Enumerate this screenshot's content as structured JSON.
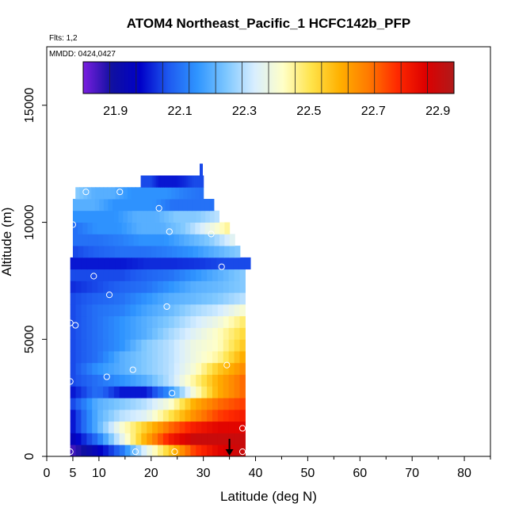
{
  "chart_data": {
    "type": "heatmap",
    "title": "ATOM4 Northeast_Pacific_1 HCFC142b_PFP",
    "flights_label": "Flts: 1,2",
    "dates_label": "MMDD: 0424,0427",
    "xlabel": "Latitude (deg N)",
    "ylabel": "Altitude (m)",
    "xlim": [
      0,
      85
    ],
    "ylim": [
      0,
      17500
    ],
    "x_ticks": [
      0,
      5,
      10,
      20,
      30,
      40,
      50,
      60,
      70,
      80
    ],
    "y_ticks": [
      0,
      5000,
      10000,
      15000
    ],
    "colorbar": {
      "min": 21.8,
      "max": 22.95,
      "tick_values": [
        21.9,
        22.1,
        22.3,
        22.5,
        22.7,
        22.9
      ],
      "tick_labels": [
        "21.9",
        "22.1",
        "22.3",
        "22.5",
        "22.7",
        "22.9"
      ],
      "colors": [
        "#7A1FE0",
        "#1010A0",
        "#0000C8",
        "#1E5AF0",
        "#2F95FF",
        "#7CC6FF",
        "#D8EEFF",
        "#FFFFC8",
        "#FFE34A",
        "#FFB000",
        "#FF7A00",
        "#FF2A00",
        "#DD0000",
        "#B01A1A"
      ]
    },
    "grid": false,
    "field_rows": [
      {
        "alt": [
          0,
          500
        ],
        "lat_range": [
          4.5,
          38
        ],
        "values": [
          21.85,
          21.95,
          22.1,
          22.35,
          22.55,
          22.75,
          22.85,
          22.9
        ]
      },
      {
        "alt": [
          500,
          1000
        ],
        "lat_range": [
          4.5,
          38
        ],
        "values": [
          21.95,
          22.1,
          22.35,
          22.6,
          22.8,
          22.9,
          22.9,
          22.9
        ]
      },
      {
        "alt": [
          1000,
          1500
        ],
        "lat_range": [
          4.5,
          38
        ],
        "values": [
          22.0,
          22.2,
          22.4,
          22.55,
          22.7,
          22.8,
          22.85,
          22.85
        ]
      },
      {
        "alt": [
          1500,
          2000
        ],
        "lat_range": [
          4.5,
          38
        ],
        "values": [
          22.0,
          22.2,
          22.3,
          22.35,
          22.5,
          22.65,
          22.75,
          22.8
        ]
      },
      {
        "alt": [
          2000,
          2500
        ],
        "lat_range": [
          4.5,
          38
        ],
        "values": [
          22.05,
          22.2,
          22.25,
          22.3,
          22.4,
          22.6,
          22.7,
          22.75
        ]
      },
      {
        "alt": [
          2500,
          3000
        ],
        "lat_range": [
          4.5,
          38
        ],
        "values": [
          22.0,
          22.1,
          22.0,
          22.0,
          22.15,
          22.4,
          22.6,
          22.7
        ]
      },
      {
        "alt": [
          3000,
          3500
        ],
        "lat_range": [
          4.5,
          38
        ],
        "values": [
          22.05,
          22.1,
          22.15,
          22.2,
          22.3,
          22.45,
          22.6,
          22.7
        ]
      },
      {
        "alt": [
          3500,
          4000
        ],
        "lat_range": [
          4.5,
          38
        ],
        "values": [
          22.05,
          22.15,
          22.2,
          22.25,
          22.3,
          22.4,
          22.55,
          22.65
        ]
      },
      {
        "alt": [
          4000,
          4500
        ],
        "lat_range": [
          4.5,
          38
        ],
        "values": [
          22.05,
          22.1,
          22.2,
          22.25,
          22.3,
          22.38,
          22.45,
          22.6
        ]
      },
      {
        "alt": [
          4500,
          5000
        ],
        "lat_range": [
          4.5,
          38
        ],
        "values": [
          22.05,
          22.1,
          22.15,
          22.25,
          22.3,
          22.38,
          22.42,
          22.55
        ]
      },
      {
        "alt": [
          5000,
          5500
        ],
        "lat_range": [
          4.5,
          38
        ],
        "values": [
          22.05,
          22.1,
          22.15,
          22.2,
          22.28,
          22.35,
          22.42,
          22.52
        ]
      },
      {
        "alt": [
          5500,
          6000
        ],
        "lat_range": [
          4.5,
          38
        ],
        "values": [
          22.05,
          22.1,
          22.15,
          22.2,
          22.25,
          22.32,
          22.38,
          22.48
        ]
      },
      {
        "alt": [
          6000,
          6500
        ],
        "lat_range": [
          4.5,
          38
        ],
        "values": [
          22.05,
          22.1,
          22.12,
          22.18,
          22.22,
          22.28,
          22.32,
          22.4
        ]
      },
      {
        "alt": [
          6500,
          7000
        ],
        "lat_range": [
          4.5,
          38
        ],
        "values": [
          22.05,
          22.08,
          22.1,
          22.15,
          22.2,
          22.22,
          22.25,
          22.3
        ]
      },
      {
        "alt": [
          7000,
          7500
        ],
        "lat_range": [
          4.5,
          38
        ],
        "values": [
          22.02,
          22.05,
          22.08,
          22.1,
          22.15,
          22.2,
          22.22,
          22.25
        ]
      },
      {
        "alt": [
          7500,
          8000
        ],
        "lat_range": [
          4.5,
          38
        ],
        "values": [
          22.05,
          22.05,
          22.05,
          22.08,
          22.1,
          22.15,
          22.2,
          22.25
        ]
      },
      {
        "alt": [
          8000,
          8500
        ],
        "lat_range": [
          4.5,
          39
        ],
        "values": [
          22.0,
          22.0,
          22.0,
          22.02,
          22.02,
          22.03,
          22.05,
          22.05
        ]
      },
      {
        "alt": [
          8500,
          9000
        ],
        "lat_range": [
          5,
          37
        ],
        "values": [
          22.05,
          22.08,
          22.1,
          22.1,
          22.12,
          22.15,
          22.2,
          22.25
        ]
      },
      {
        "alt": [
          9000,
          9500
        ],
        "lat_range": [
          5,
          36
        ],
        "values": [
          22.1,
          22.1,
          22.12,
          22.15,
          22.15,
          22.2,
          22.25,
          22.35
        ]
      },
      {
        "alt": [
          9500,
          10000
        ],
        "lat_range": [
          5,
          35
        ],
        "values": [
          22.1,
          22.15,
          22.15,
          22.2,
          22.2,
          22.25,
          22.35,
          22.45
        ]
      },
      {
        "alt": [
          10000,
          10500
        ],
        "lat_range": [
          5,
          33
        ],
        "values": [
          22.15,
          22.15,
          22.15,
          22.2,
          22.2,
          22.25,
          22.25,
          22.3
        ]
      },
      {
        "alt": [
          10500,
          11000
        ],
        "lat_range": [
          5,
          32
        ],
        "values": [
          22.2,
          22.2,
          22.15,
          22.15,
          22.15,
          22.1,
          22.1,
          22.1
        ]
      },
      {
        "alt": [
          11000,
          11500
        ],
        "lat_range": [
          5.5,
          30
        ],
        "values": [
          22.25,
          22.2,
          22.2,
          22.15,
          22.15,
          22.15,
          22.12,
          22.1
        ]
      },
      {
        "alt": [
          11500,
          12000
        ],
        "lat_range": [
          18,
          30
        ],
        "values": [
          22.05,
          22.05,
          22.0,
          22.0,
          22.0,
          22.02,
          22.05,
          22.05
        ]
      },
      {
        "alt": [
          12000,
          12500
        ],
        "lat_range": [
          29.3,
          29.8
        ],
        "values": [
          22.05,
          22.05,
          22.05,
          22.05,
          22.05,
          22.05,
          22.05,
          22.05
        ]
      }
    ],
    "sample_points": [
      {
        "lat": 4.5,
        "alt": 200
      },
      {
        "lat": 17.0,
        "alt": 200
      },
      {
        "lat": 24.5,
        "alt": 200
      },
      {
        "lat": 37.5,
        "alt": 200
      },
      {
        "lat": 37.5,
        "alt": 1200
      },
      {
        "lat": 24.0,
        "alt": 2700
      },
      {
        "lat": 4.5,
        "alt": 3200
      },
      {
        "lat": 11.5,
        "alt": 3400
      },
      {
        "lat": 16.5,
        "alt": 3700
      },
      {
        "lat": 34.5,
        "alt": 3900
      },
      {
        "lat": 5.5,
        "alt": 5600
      },
      {
        "lat": 4.5,
        "alt": 5700
      },
      {
        "lat": 23.0,
        "alt": 6400
      },
      {
        "lat": 12.0,
        "alt": 6900
      },
      {
        "lat": 9.0,
        "alt": 7700
      },
      {
        "lat": 33.5,
        "alt": 8100
      },
      {
        "lat": 5.0,
        "alt": 9900
      },
      {
        "lat": 23.5,
        "alt": 9600
      },
      {
        "lat": 31.5,
        "alt": 9500
      },
      {
        "lat": 21.5,
        "alt": 10600
      },
      {
        "lat": 7.5,
        "alt": 11300
      },
      {
        "lat": 14.0,
        "alt": 11300
      }
    ],
    "marker": {
      "lat": 35,
      "alt_from": 750,
      "alt_to": 0
    }
  }
}
